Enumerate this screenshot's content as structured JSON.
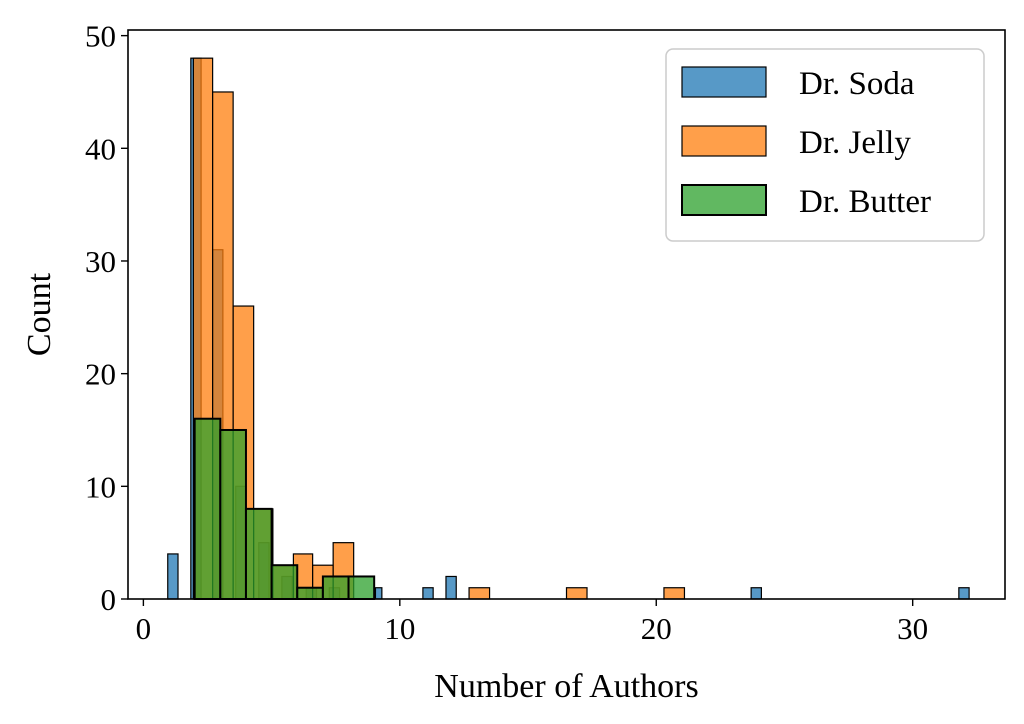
{
  "chart_data": {
    "type": "bar",
    "xlabel": "Number of Authors",
    "ylabel": "Count",
    "xlim": [
      -0.6,
      33.6
    ],
    "ylim": [
      0,
      50.5
    ],
    "xticks": [
      0,
      10,
      20,
      30
    ],
    "yticks": [
      0,
      10,
      20,
      30,
      40,
      50
    ],
    "legend_position": "top-right",
    "grid": false,
    "series": [
      {
        "name": "Dr. Soda",
        "color": "#1f77b4",
        "opacity": 0.75,
        "bins": [
          {
            "x0": 0.95,
            "x1": 1.35,
            "count": 4
          },
          {
            "x0": 1.85,
            "x1": 2.25,
            "count": 48
          },
          {
            "x0": 2.7,
            "x1": 3.1,
            "count": 31
          },
          {
            "x0": 3.6,
            "x1": 4.0,
            "count": 10
          },
          {
            "x0": 4.5,
            "x1": 4.9,
            "count": 5
          },
          {
            "x0": 5.4,
            "x1": 5.8,
            "count": 2
          },
          {
            "x0": 6.35,
            "x1": 6.75,
            "count": 1
          },
          {
            "x0": 7.25,
            "x1": 7.65,
            "count": 1
          },
          {
            "x0": 9.05,
            "x1": 9.3,
            "count": 1
          },
          {
            "x0": 10.9,
            "x1": 11.3,
            "count": 1
          },
          {
            "x0": 11.8,
            "x1": 12.2,
            "count": 2
          },
          {
            "x0": 23.7,
            "x1": 24.1,
            "count": 1
          },
          {
            "x0": 31.8,
            "x1": 32.2,
            "count": 1
          }
        ]
      },
      {
        "name": "Dr. Jelly",
        "color": "#ff7f0e",
        "opacity": 0.75,
        "bins": [
          {
            "x0": 1.95,
            "x1": 2.7,
            "count": 48
          },
          {
            "x0": 2.7,
            "x1": 3.5,
            "count": 45
          },
          {
            "x0": 3.5,
            "x1": 4.3,
            "count": 26
          },
          {
            "x0": 4.3,
            "x1": 5.05,
            "count": 8
          },
          {
            "x0": 5.05,
            "x1": 5.85,
            "count": 3
          },
          {
            "x0": 5.85,
            "x1": 6.6,
            "count": 4
          },
          {
            "x0": 6.6,
            "x1": 7.4,
            "count": 3
          },
          {
            "x0": 7.4,
            "x1": 8.2,
            "count": 5
          },
          {
            "x0": 12.7,
            "x1": 13.5,
            "count": 1
          },
          {
            "x0": 16.5,
            "x1": 17.3,
            "count": 1
          },
          {
            "x0": 20.3,
            "x1": 21.1,
            "count": 1
          }
        ]
      },
      {
        "name": "Dr. Butter",
        "color": "#2ca02c",
        "opacity": 0.75,
        "bins": [
          {
            "x0": 2.0,
            "x1": 3.0,
            "count": 16
          },
          {
            "x0": 3.0,
            "x1": 4.0,
            "count": 15
          },
          {
            "x0": 4.0,
            "x1": 5.0,
            "count": 8
          },
          {
            "x0": 5.0,
            "x1": 6.0,
            "count": 3
          },
          {
            "x0": 6.0,
            "x1": 7.0,
            "count": 1
          },
          {
            "x0": 7.0,
            "x1": 8.0,
            "count": 2
          },
          {
            "x0": 8.0,
            "x1": 9.0,
            "count": 2
          }
        ]
      }
    ]
  }
}
